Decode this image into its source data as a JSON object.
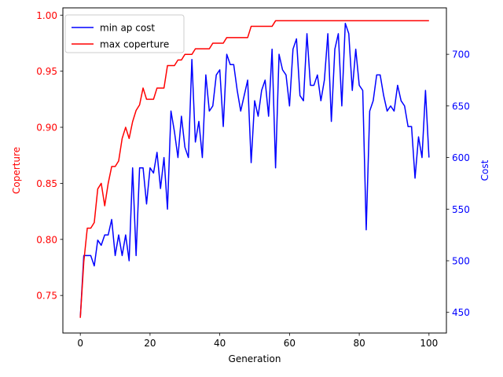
{
  "chart_data": {
    "type": "line",
    "xlabel": "Generation",
    "ylabel_left": "Coperture",
    "ylabel_right": "Cost",
    "xlim": [
      -5,
      105
    ],
    "ylim_left": [
      0.7165,
      1.0065
    ],
    "ylim_right": [
      430,
      745
    ],
    "xticks": [
      0,
      20,
      40,
      60,
      80,
      100
    ],
    "xtick_labels": [
      "0",
      "20",
      "40",
      "60",
      "80",
      "100"
    ],
    "yticks_left": [
      0.75,
      0.8,
      0.85,
      0.9,
      0.95,
      1.0
    ],
    "ytick_labels_left": [
      "0.75",
      "0.80",
      "0.85",
      "0.90",
      "0.95",
      "1.00"
    ],
    "yticks_right": [
      450,
      500,
      550,
      600,
      650,
      700
    ],
    "ytick_labels_right": [
      "450",
      "500",
      "550",
      "600",
      "650",
      "700"
    ],
    "legend_position": "top-left",
    "grid": false,
    "left_axis_color": "#ff0000",
    "right_axis_color": "#0000ff",
    "series": [
      {
        "name": "min ap cost",
        "axis": "right",
        "color": "#0000ff",
        "x": [
          0,
          1,
          2,
          3,
          4,
          5,
          6,
          7,
          8,
          9,
          10,
          11,
          12,
          13,
          14,
          15,
          16,
          17,
          18,
          19,
          20,
          21,
          22,
          23,
          24,
          25,
          26,
          27,
          28,
          29,
          30,
          31,
          32,
          33,
          34,
          35,
          36,
          37,
          38,
          39,
          40,
          41,
          42,
          43,
          44,
          45,
          46,
          47,
          48,
          49,
          50,
          51,
          52,
          53,
          54,
          55,
          56,
          57,
          58,
          59,
          60,
          61,
          62,
          63,
          64,
          65,
          66,
          67,
          68,
          69,
          70,
          71,
          72,
          73,
          74,
          75,
          76,
          77,
          78,
          79,
          80,
          81,
          82,
          83,
          84,
          85,
          86,
          87,
          88,
          89,
          90,
          91,
          92,
          93,
          94,
          95,
          96,
          97,
          98,
          99,
          100
        ],
        "values": [
          445,
          505,
          505,
          505,
          495,
          520,
          515,
          525,
          525,
          540,
          505,
          525,
          505,
          525,
          500,
          590,
          505,
          590,
          590,
          555,
          590,
          585,
          605,
          570,
          600,
          550,
          645,
          625,
          600,
          640,
          610,
          600,
          695,
          615,
          635,
          600,
          680,
          645,
          650,
          680,
          685,
          630,
          700,
          690,
          690,
          665,
          645,
          660,
          675,
          595,
          655,
          640,
          665,
          675,
          640,
          705,
          590,
          700,
          685,
          680,
          650,
          705,
          715,
          660,
          655,
          720,
          670,
          670,
          680,
          655,
          675,
          720,
          635,
          705,
          720,
          650,
          730,
          720,
          665,
          705,
          670,
          665,
          530,
          645,
          655,
          680,
          680,
          660,
          645,
          650,
          645,
          670,
          655,
          650,
          630,
          630,
          580,
          620,
          600,
          665,
          600
        ]
      },
      {
        "name": "max coperture",
        "axis": "left",
        "color": "#ff0000",
        "x": [
          0,
          1,
          2,
          3,
          4,
          5,
          6,
          7,
          8,
          9,
          10,
          11,
          12,
          13,
          14,
          15,
          16,
          17,
          18,
          19,
          20,
          21,
          22,
          23,
          24,
          25,
          26,
          27,
          28,
          29,
          30,
          31,
          32,
          33,
          34,
          35,
          36,
          37,
          38,
          39,
          40,
          41,
          42,
          43,
          44,
          45,
          46,
          47,
          48,
          49,
          50,
          51,
          52,
          53,
          54,
          55,
          56,
          57,
          58,
          59,
          60,
          61,
          62,
          63,
          64,
          65,
          66,
          67,
          68,
          69,
          70,
          71,
          72,
          73,
          74,
          75,
          76,
          77,
          78,
          79,
          80,
          81,
          82,
          83,
          84,
          85,
          86,
          87,
          88,
          89,
          90,
          91,
          92,
          93,
          94,
          95,
          96,
          97,
          98,
          99,
          100
        ],
        "values": [
          0.73,
          0.78,
          0.81,
          0.81,
          0.815,
          0.845,
          0.85,
          0.83,
          0.85,
          0.865,
          0.865,
          0.87,
          0.89,
          0.9,
          0.89,
          0.905,
          0.915,
          0.92,
          0.935,
          0.925,
          0.925,
          0.925,
          0.935,
          0.935,
          0.935,
          0.955,
          0.955,
          0.955,
          0.96,
          0.96,
          0.965,
          0.965,
          0.965,
          0.97,
          0.97,
          0.97,
          0.97,
          0.97,
          0.975,
          0.975,
          0.975,
          0.975,
          0.98,
          0.98,
          0.98,
          0.98,
          0.98,
          0.98,
          0.98,
          0.99,
          0.99,
          0.99,
          0.99,
          0.99,
          0.99,
          0.99,
          0.995,
          0.995,
          0.995,
          0.995,
          0.995,
          0.995,
          0.995,
          0.995,
          0.995,
          0.995,
          0.995,
          0.995,
          0.995,
          0.995,
          0.995,
          0.995,
          0.995,
          0.995,
          0.995,
          0.995,
          0.995,
          0.995,
          0.995,
          0.995,
          0.995,
          0.995,
          0.995,
          0.995,
          0.995,
          0.995,
          0.995,
          0.995,
          0.995,
          0.995,
          0.995,
          0.995,
          0.995,
          0.995,
          0.995,
          0.995,
          0.995,
          0.995,
          0.995,
          0.995,
          0.995
        ]
      }
    ]
  }
}
